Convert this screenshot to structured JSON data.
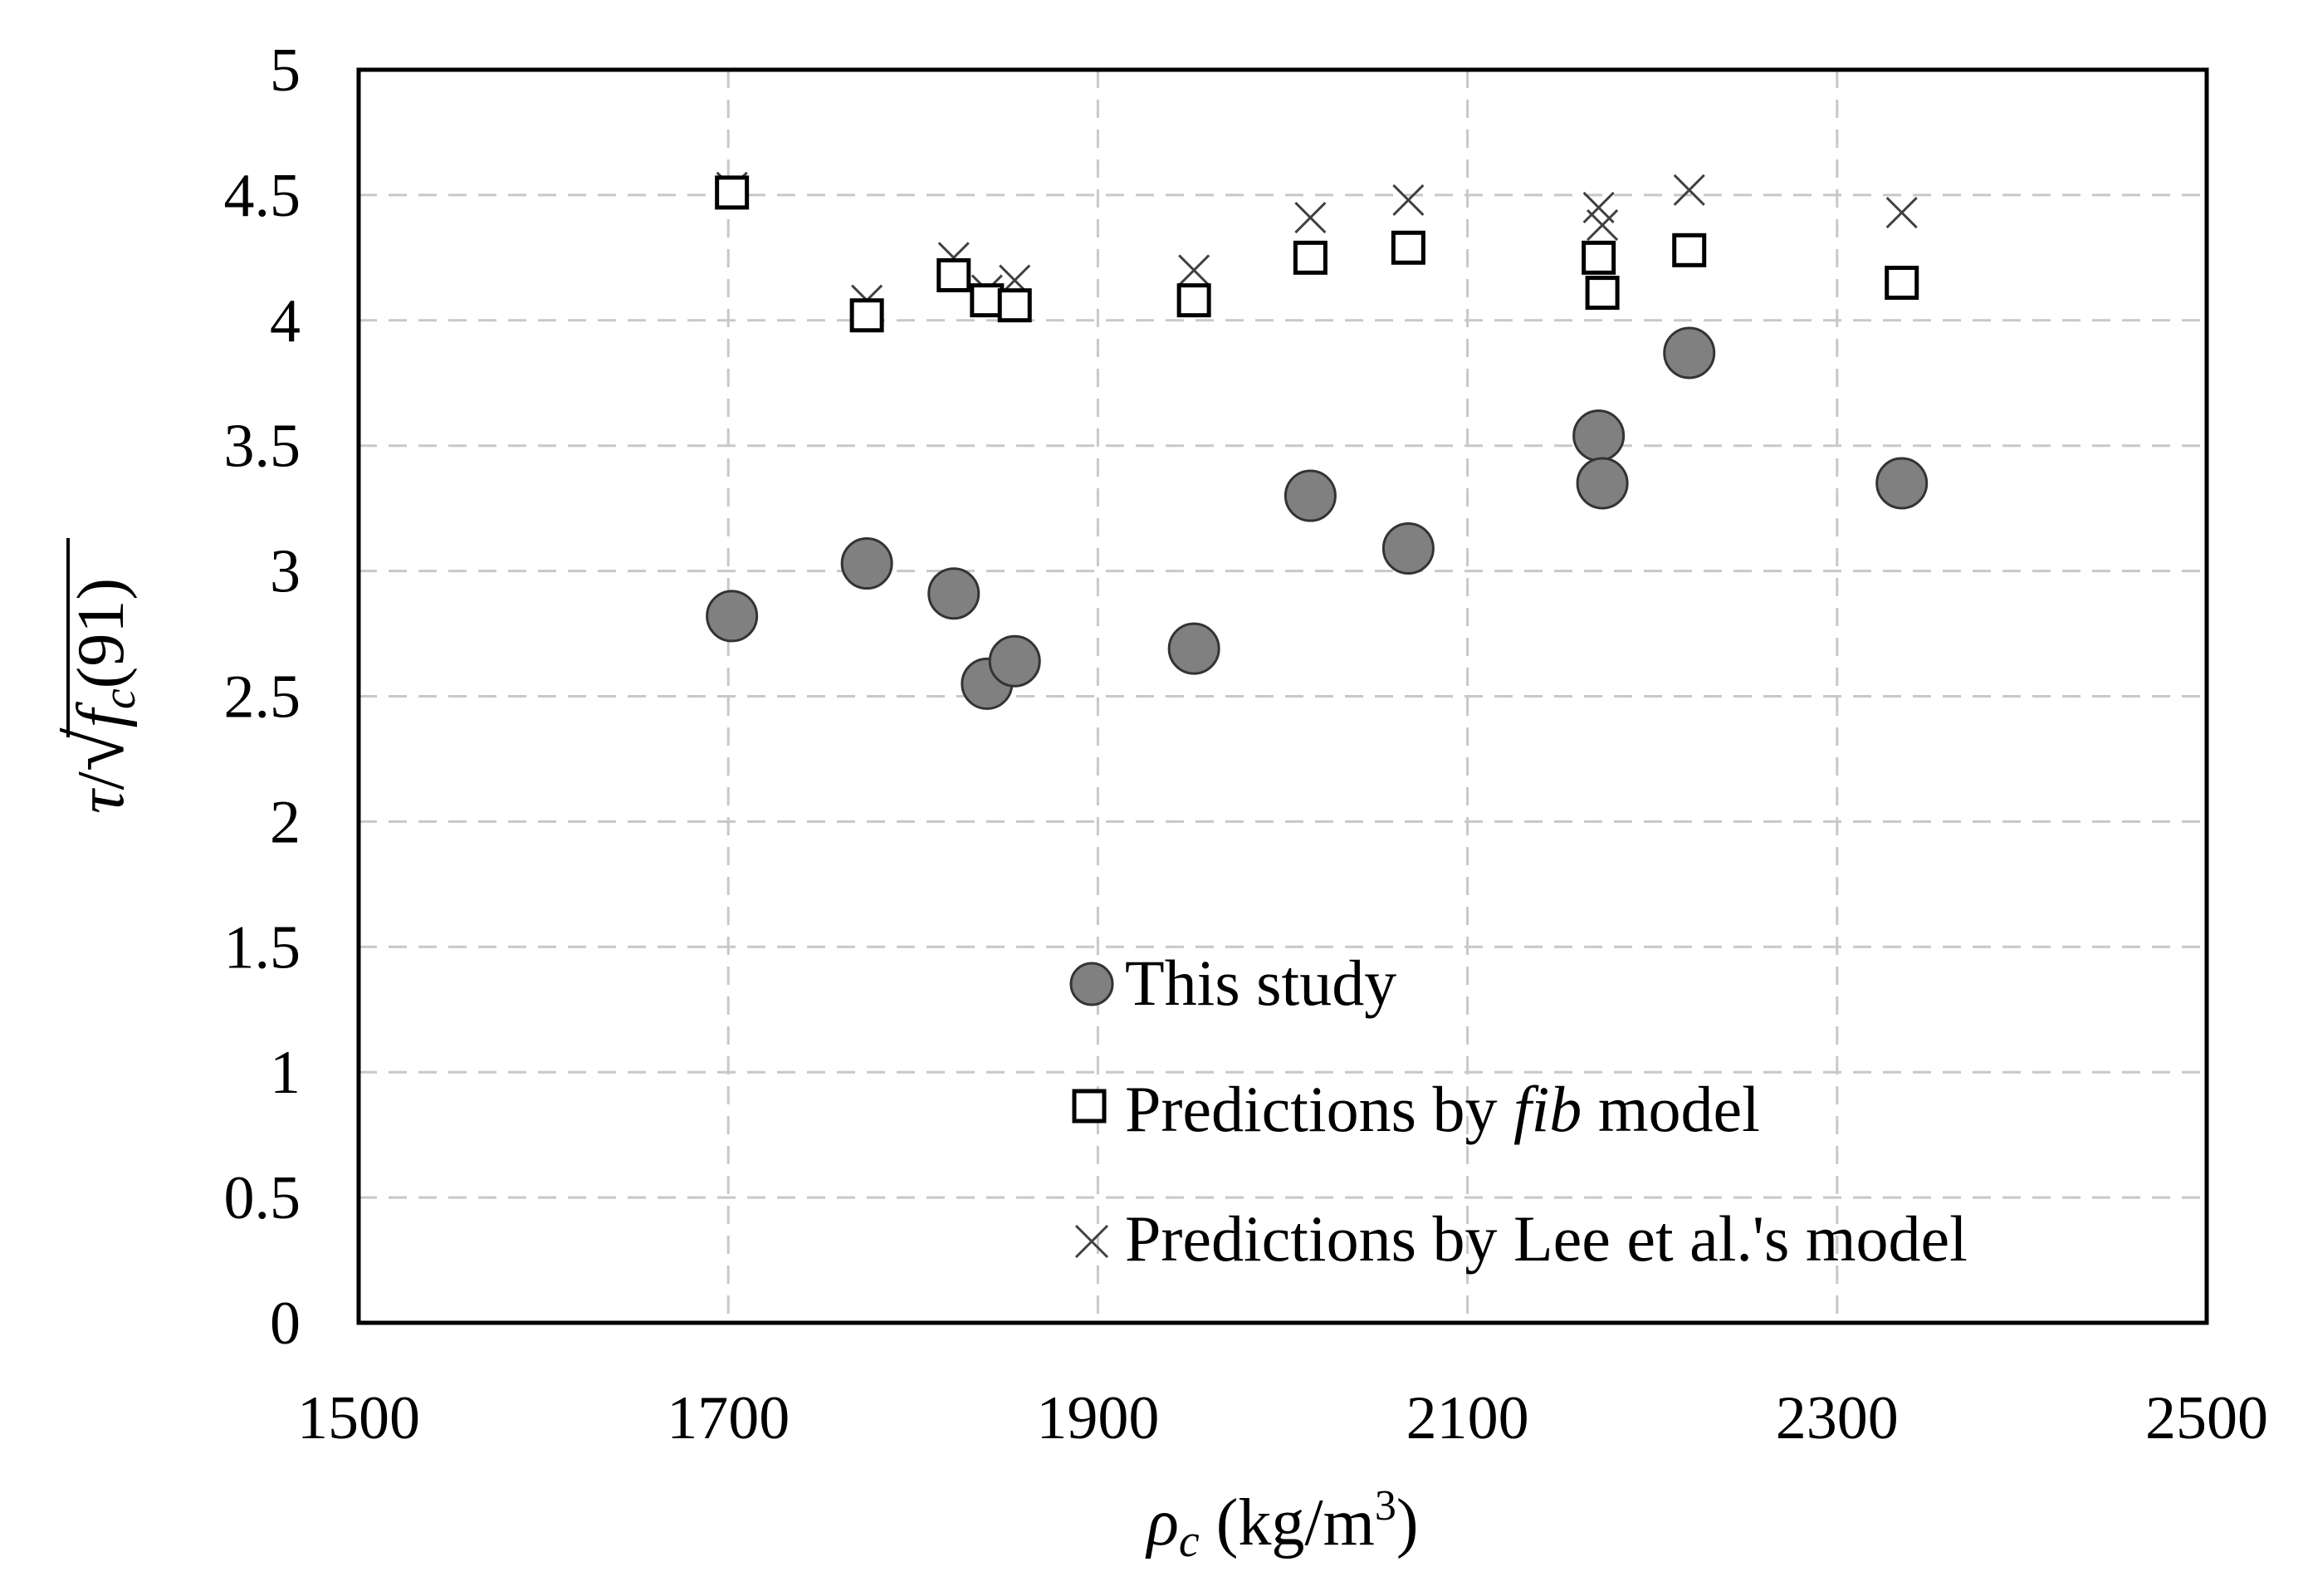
{
  "chart_data": {
    "type": "scatter",
    "xlabel": "ρc (kg/m3)",
    "xlabel_parts": {
      "symbol": "ρ",
      "subscript": "c",
      "units_prefix": "(kg/m",
      "units_sup": "3",
      "units_suffix": ")"
    },
    "ylabel": "τ/√fc(91)",
    "ylabel_parts": {
      "tau": "τ",
      "slash": "/",
      "radical": "√",
      "f": "f",
      "sub": "c",
      "arg": "(91)"
    },
    "xlim": [
      1500,
      2500
    ],
    "ylim": [
      0,
      5
    ],
    "xticks": [
      "1500",
      "1700",
      "1900",
      "2100",
      "2300",
      "2500"
    ],
    "yticks": [
      "0",
      "0.5",
      "1",
      "1.5",
      "2",
      "2.5",
      "3",
      "3.5",
      "4",
      "4.5",
      "5"
    ],
    "grid": true,
    "legend_position": "bottom-center",
    "series": [
      {
        "name": "This study",
        "marker": "circle",
        "color": "#808080",
        "legend_text": [
          "This study"
        ],
        "points": [
          {
            "x": 1702,
            "y": 2.82
          },
          {
            "x": 1775,
            "y": 3.03
          },
          {
            "x": 1822,
            "y": 2.91
          },
          {
            "x": 1840,
            "y": 2.55
          },
          {
            "x": 1855,
            "y": 2.64
          },
          {
            "x": 1952,
            "y": 2.69
          },
          {
            "x": 2015,
            "y": 3.3
          },
          {
            "x": 2068,
            "y": 3.09
          },
          {
            "x": 2171,
            "y": 3.54
          },
          {
            "x": 2173,
            "y": 3.35
          },
          {
            "x": 2220,
            "y": 3.87
          },
          {
            "x": 2335,
            "y": 3.35
          }
        ]
      },
      {
        "name": "Predictions by fib model",
        "marker": "square",
        "color": "#000000",
        "legend_text": [
          "Predictions by ",
          "fib",
          " model"
        ],
        "points": [
          {
            "x": 1702,
            "y": 4.51
          },
          {
            "x": 1775,
            "y": 4.02
          },
          {
            "x": 1822,
            "y": 4.18
          },
          {
            "x": 1840,
            "y": 4.08
          },
          {
            "x": 1855,
            "y": 4.06
          },
          {
            "x": 1952,
            "y": 4.08
          },
          {
            "x": 2015,
            "y": 4.25
          },
          {
            "x": 2068,
            "y": 4.29
          },
          {
            "x": 2171,
            "y": 4.25
          },
          {
            "x": 2173,
            "y": 4.11
          },
          {
            "x": 2220,
            "y": 4.28
          },
          {
            "x": 2335,
            "y": 4.15
          }
        ]
      },
      {
        "name": "Predictions by Lee et al.'s model",
        "marker": "x",
        "color": "#404040",
        "legend_text": [
          "Predictions by Lee et al.'s model"
        ],
        "points": [
          {
            "x": 1702,
            "y": 4.53
          },
          {
            "x": 1775,
            "y": 4.08
          },
          {
            "x": 1822,
            "y": 4.25
          },
          {
            "x": 1840,
            "y": 4.12
          },
          {
            "x": 1855,
            "y": 4.16
          },
          {
            "x": 1952,
            "y": 4.2
          },
          {
            "x": 2015,
            "y": 4.41
          },
          {
            "x": 2068,
            "y": 4.48
          },
          {
            "x": 2171,
            "y": 4.45
          },
          {
            "x": 2173,
            "y": 4.38
          },
          {
            "x": 2220,
            "y": 4.52
          },
          {
            "x": 2335,
            "y": 4.43
          }
        ]
      }
    ]
  }
}
